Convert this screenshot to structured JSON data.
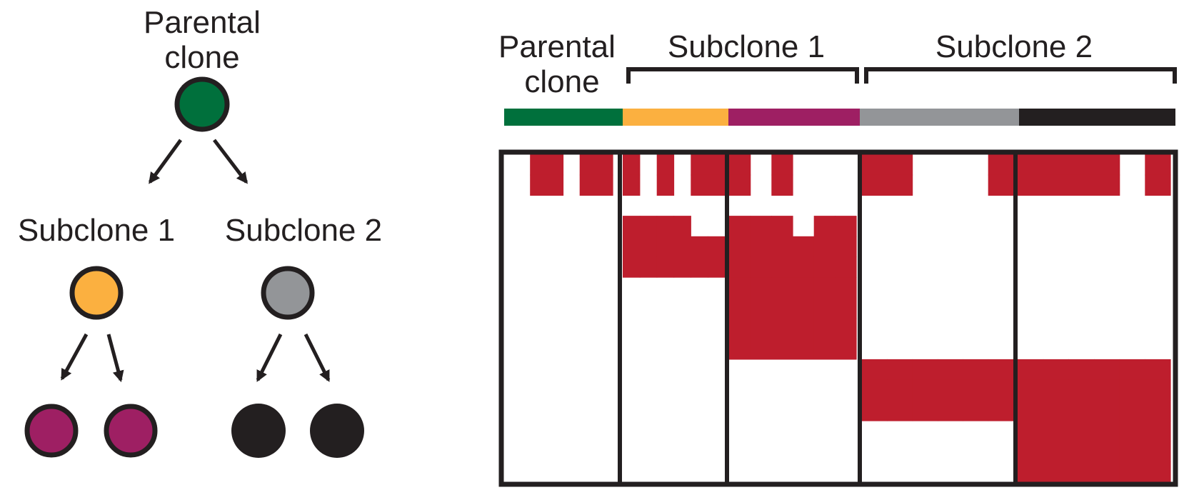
{
  "tree": {
    "root": {
      "label_lines": [
        "Parental",
        "clone"
      ]
    },
    "branches": [
      {
        "label": "Subclone 1"
      },
      {
        "label": "Subclone 2"
      }
    ]
  },
  "matrix": {
    "header_groups": [
      {
        "label_lines": [
          "Parental",
          "clone"
        ]
      },
      {
        "label": "Subclone 1"
      },
      {
        "label": "Subclone 2"
      }
    ]
  },
  "colors": {
    "parental": "#00703c",
    "subclone1": "#fbb040",
    "subclone1_child": "#9e1f63",
    "subclone2": "#939598",
    "subclone2_child": "#231f20",
    "mutation": "#be1e2d",
    "outline": "#231f20"
  },
  "chart_data": {
    "type": "heatmap",
    "columns_per_sample": [
      6,
      6,
      6,
      6,
      6
    ],
    "samples": [
      "parental",
      "subclone1_a",
      "subclone1_b",
      "subclone2_a",
      "subclone2_b"
    ],
    "rows": 16,
    "cells": [
      "011011101011101000110001111101000111111100011001",
      "000000000000001011101001000000110000001110000010",
      "111100111100111011111101000000111101000001111001",
      "111100111111111111111111100000111100011111111100",
      "111100111111111111111111100000111100111111111110",
      "111100111111111111111111111111000011110000000000",
      "110000111111111111111111111111000011100000111111"
    ]
  }
}
